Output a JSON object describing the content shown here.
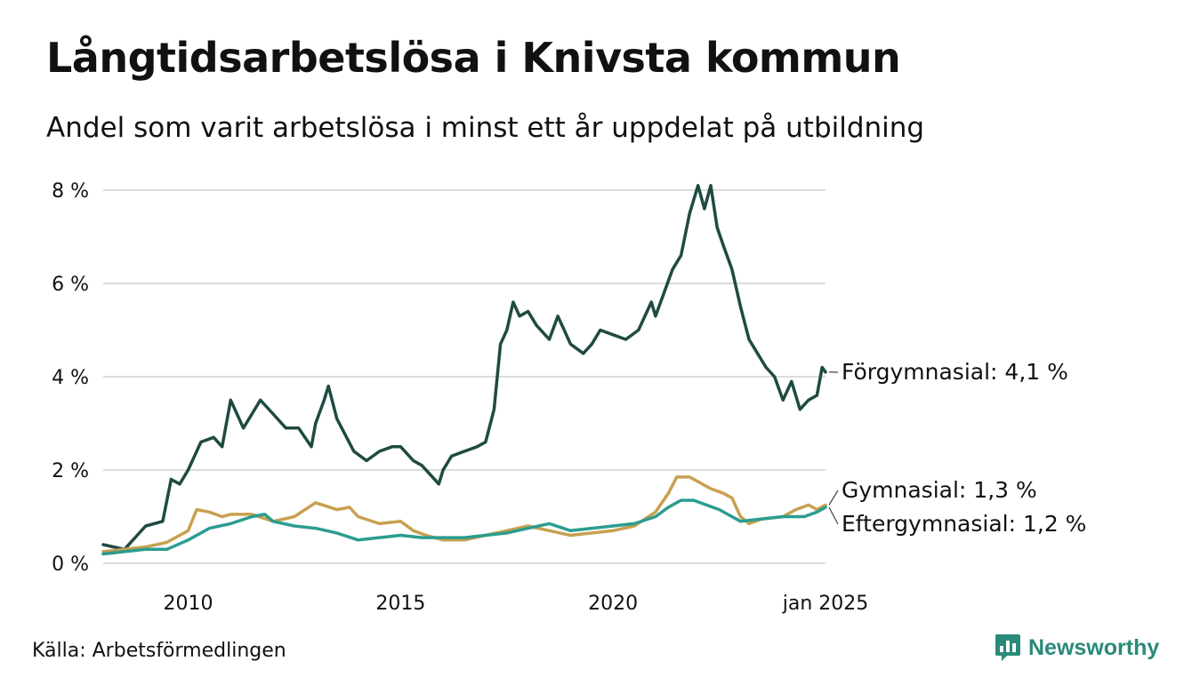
{
  "title": "Långtidsarbetslösa i Knivsta kommun",
  "subtitle": "Andel som varit arbetslösa i minst ett år uppdelat på utbildning",
  "source": "Källa: Arbetsförmedlingen",
  "brand": {
    "name": "Newsworthy",
    "logo_icon": "newsworthy-chart-bubble-icon",
    "color": "#2a8a7a"
  },
  "chart_data": {
    "type": "line",
    "title": "Långtidsarbetslösa i Knivsta kommun",
    "subtitle": "Andel som varit arbetslösa i minst ett år uppdelat på utbildning",
    "xlabel": "",
    "ylabel": "",
    "x_ticks": [
      {
        "x": 2010,
        "label": "2010"
      },
      {
        "x": 2015,
        "label": "2015"
      },
      {
        "x": 2020,
        "label": "2020"
      },
      {
        "x": 2025,
        "label": "jan 2025"
      }
    ],
    "y_ticks": [
      {
        "y": 0,
        "label": "0 %"
      },
      {
        "y": 2,
        "label": "2 %"
      },
      {
        "y": 4,
        "label": "4 %"
      },
      {
        "y": 6,
        "label": "6 %"
      },
      {
        "y": 8,
        "label": "8 %"
      }
    ],
    "xlim": [
      2008.0,
      2025.0
    ],
    "ylim": [
      0,
      8.2
    ],
    "grid": "horizontal",
    "series": [
      {
        "name": "Förgymnasial",
        "end_label": "Förgymnasial: 4,1 %",
        "color": "#1f4a42",
        "points": [
          [
            2008.0,
            0.4
          ],
          [
            2008.5,
            0.3
          ],
          [
            2009.0,
            0.8
          ],
          [
            2009.4,
            0.9
          ],
          [
            2009.6,
            1.8
          ],
          [
            2009.8,
            1.7
          ],
          [
            2010.0,
            2.0
          ],
          [
            2010.3,
            2.6
          ],
          [
            2010.6,
            2.7
          ],
          [
            2010.8,
            2.5
          ],
          [
            2011.0,
            3.5
          ],
          [
            2011.3,
            2.9
          ],
          [
            2011.5,
            3.2
          ],
          [
            2011.7,
            3.5
          ],
          [
            2012.0,
            3.2
          ],
          [
            2012.3,
            2.9
          ],
          [
            2012.6,
            2.9
          ],
          [
            2012.9,
            2.5
          ],
          [
            2013.0,
            3.0
          ],
          [
            2013.2,
            3.5
          ],
          [
            2013.3,
            3.8
          ],
          [
            2013.5,
            3.1
          ],
          [
            2013.9,
            2.4
          ],
          [
            2014.2,
            2.2
          ],
          [
            2014.5,
            2.4
          ],
          [
            2014.8,
            2.5
          ],
          [
            2015.0,
            2.5
          ],
          [
            2015.3,
            2.2
          ],
          [
            2015.5,
            2.1
          ],
          [
            2015.7,
            1.9
          ],
          [
            2015.9,
            1.7
          ],
          [
            2016.0,
            2.0
          ],
          [
            2016.2,
            2.3
          ],
          [
            2016.5,
            2.4
          ],
          [
            2016.8,
            2.5
          ],
          [
            2017.0,
            2.6
          ],
          [
            2017.2,
            3.3
          ],
          [
            2017.35,
            4.7
          ],
          [
            2017.5,
            5.0
          ],
          [
            2017.65,
            5.6
          ],
          [
            2017.8,
            5.3
          ],
          [
            2018.0,
            5.4
          ],
          [
            2018.2,
            5.1
          ],
          [
            2018.5,
            4.8
          ],
          [
            2018.7,
            5.3
          ],
          [
            2019.0,
            4.7
          ],
          [
            2019.3,
            4.5
          ],
          [
            2019.5,
            4.7
          ],
          [
            2019.7,
            5.0
          ],
          [
            2020.0,
            4.9
          ],
          [
            2020.3,
            4.8
          ],
          [
            2020.6,
            5.0
          ],
          [
            2020.9,
            5.6
          ],
          [
            2021.0,
            5.3
          ],
          [
            2021.2,
            5.8
          ],
          [
            2021.4,
            6.3
          ],
          [
            2021.6,
            6.6
          ],
          [
            2021.8,
            7.5
          ],
          [
            2022.0,
            8.1
          ],
          [
            2022.15,
            7.6
          ],
          [
            2022.3,
            8.1
          ],
          [
            2022.45,
            7.2
          ],
          [
            2022.6,
            6.8
          ],
          [
            2022.8,
            6.3
          ],
          [
            2023.0,
            5.5
          ],
          [
            2023.2,
            4.8
          ],
          [
            2023.4,
            4.5
          ],
          [
            2023.6,
            4.2
          ],
          [
            2023.8,
            4.0
          ],
          [
            2024.0,
            3.5
          ],
          [
            2024.2,
            3.9
          ],
          [
            2024.4,
            3.3
          ],
          [
            2024.6,
            3.5
          ],
          [
            2024.8,
            3.6
          ],
          [
            2024.92,
            4.2
          ],
          [
            2025.0,
            4.1
          ]
        ]
      },
      {
        "name": "Gymnasial",
        "end_label": "Gymnasial: 1,3 %",
        "color": "#c9a050",
        "points": [
          [
            2008.0,
            0.25
          ],
          [
            2008.5,
            0.3
          ],
          [
            2009.0,
            0.35
          ],
          [
            2009.5,
            0.45
          ],
          [
            2010.0,
            0.7
          ],
          [
            2010.2,
            1.15
          ],
          [
            2010.5,
            1.1
          ],
          [
            2010.8,
            1.0
          ],
          [
            2011.0,
            1.05
          ],
          [
            2011.5,
            1.05
          ],
          [
            2012.0,
            0.9
          ],
          [
            2012.5,
            1.0
          ],
          [
            2013.0,
            1.3
          ],
          [
            2013.5,
            1.15
          ],
          [
            2013.8,
            1.2
          ],
          [
            2014.0,
            1.0
          ],
          [
            2014.5,
            0.85
          ],
          [
            2015.0,
            0.9
          ],
          [
            2015.3,
            0.7
          ],
          [
            2015.6,
            0.6
          ],
          [
            2016.0,
            0.5
          ],
          [
            2016.5,
            0.5
          ],
          [
            2017.0,
            0.6
          ],
          [
            2017.5,
            0.7
          ],
          [
            2018.0,
            0.8
          ],
          [
            2018.5,
            0.7
          ],
          [
            2019.0,
            0.6
          ],
          [
            2019.5,
            0.65
          ],
          [
            2020.0,
            0.7
          ],
          [
            2020.5,
            0.8
          ],
          [
            2021.0,
            1.1
          ],
          [
            2021.3,
            1.5
          ],
          [
            2021.5,
            1.85
          ],
          [
            2021.8,
            1.85
          ],
          [
            2022.0,
            1.75
          ],
          [
            2022.3,
            1.6
          ],
          [
            2022.6,
            1.5
          ],
          [
            2022.8,
            1.4
          ],
          [
            2023.0,
            1.0
          ],
          [
            2023.2,
            0.85
          ],
          [
            2023.5,
            0.95
          ],
          [
            2024.0,
            1.0
          ],
          [
            2024.3,
            1.15
          ],
          [
            2024.6,
            1.25
          ],
          [
            2024.8,
            1.15
          ],
          [
            2025.0,
            1.25
          ]
        ]
      },
      {
        "name": "Eftergymnasial",
        "end_label": "Eftergymnasial: 1,2 %",
        "color": "#2a9d8f",
        "points": [
          [
            2008.0,
            0.2
          ],
          [
            2008.5,
            0.25
          ],
          [
            2009.0,
            0.3
          ],
          [
            2009.5,
            0.3
          ],
          [
            2010.0,
            0.5
          ],
          [
            2010.5,
            0.75
          ],
          [
            2011.0,
            0.85
          ],
          [
            2011.5,
            1.0
          ],
          [
            2011.8,
            1.05
          ],
          [
            2012.0,
            0.9
          ],
          [
            2012.5,
            0.8
          ],
          [
            2013.0,
            0.75
          ],
          [
            2013.5,
            0.65
          ],
          [
            2014.0,
            0.5
          ],
          [
            2014.5,
            0.55
          ],
          [
            2015.0,
            0.6
          ],
          [
            2015.5,
            0.55
          ],
          [
            2016.0,
            0.55
          ],
          [
            2016.5,
            0.55
          ],
          [
            2017.0,
            0.6
          ],
          [
            2017.5,
            0.65
          ],
          [
            2018.0,
            0.75
          ],
          [
            2018.5,
            0.85
          ],
          [
            2019.0,
            0.7
          ],
          [
            2019.5,
            0.75
          ],
          [
            2020.0,
            0.8
          ],
          [
            2020.5,
            0.85
          ],
          [
            2021.0,
            1.0
          ],
          [
            2021.3,
            1.2
          ],
          [
            2021.6,
            1.35
          ],
          [
            2021.9,
            1.35
          ],
          [
            2022.2,
            1.25
          ],
          [
            2022.5,
            1.15
          ],
          [
            2022.8,
            1.0
          ],
          [
            2023.0,
            0.9
          ],
          [
            2023.5,
            0.95
          ],
          [
            2024.0,
            1.0
          ],
          [
            2024.5,
            1.0
          ],
          [
            2024.8,
            1.1
          ],
          [
            2025.0,
            1.2
          ]
        ]
      }
    ]
  }
}
